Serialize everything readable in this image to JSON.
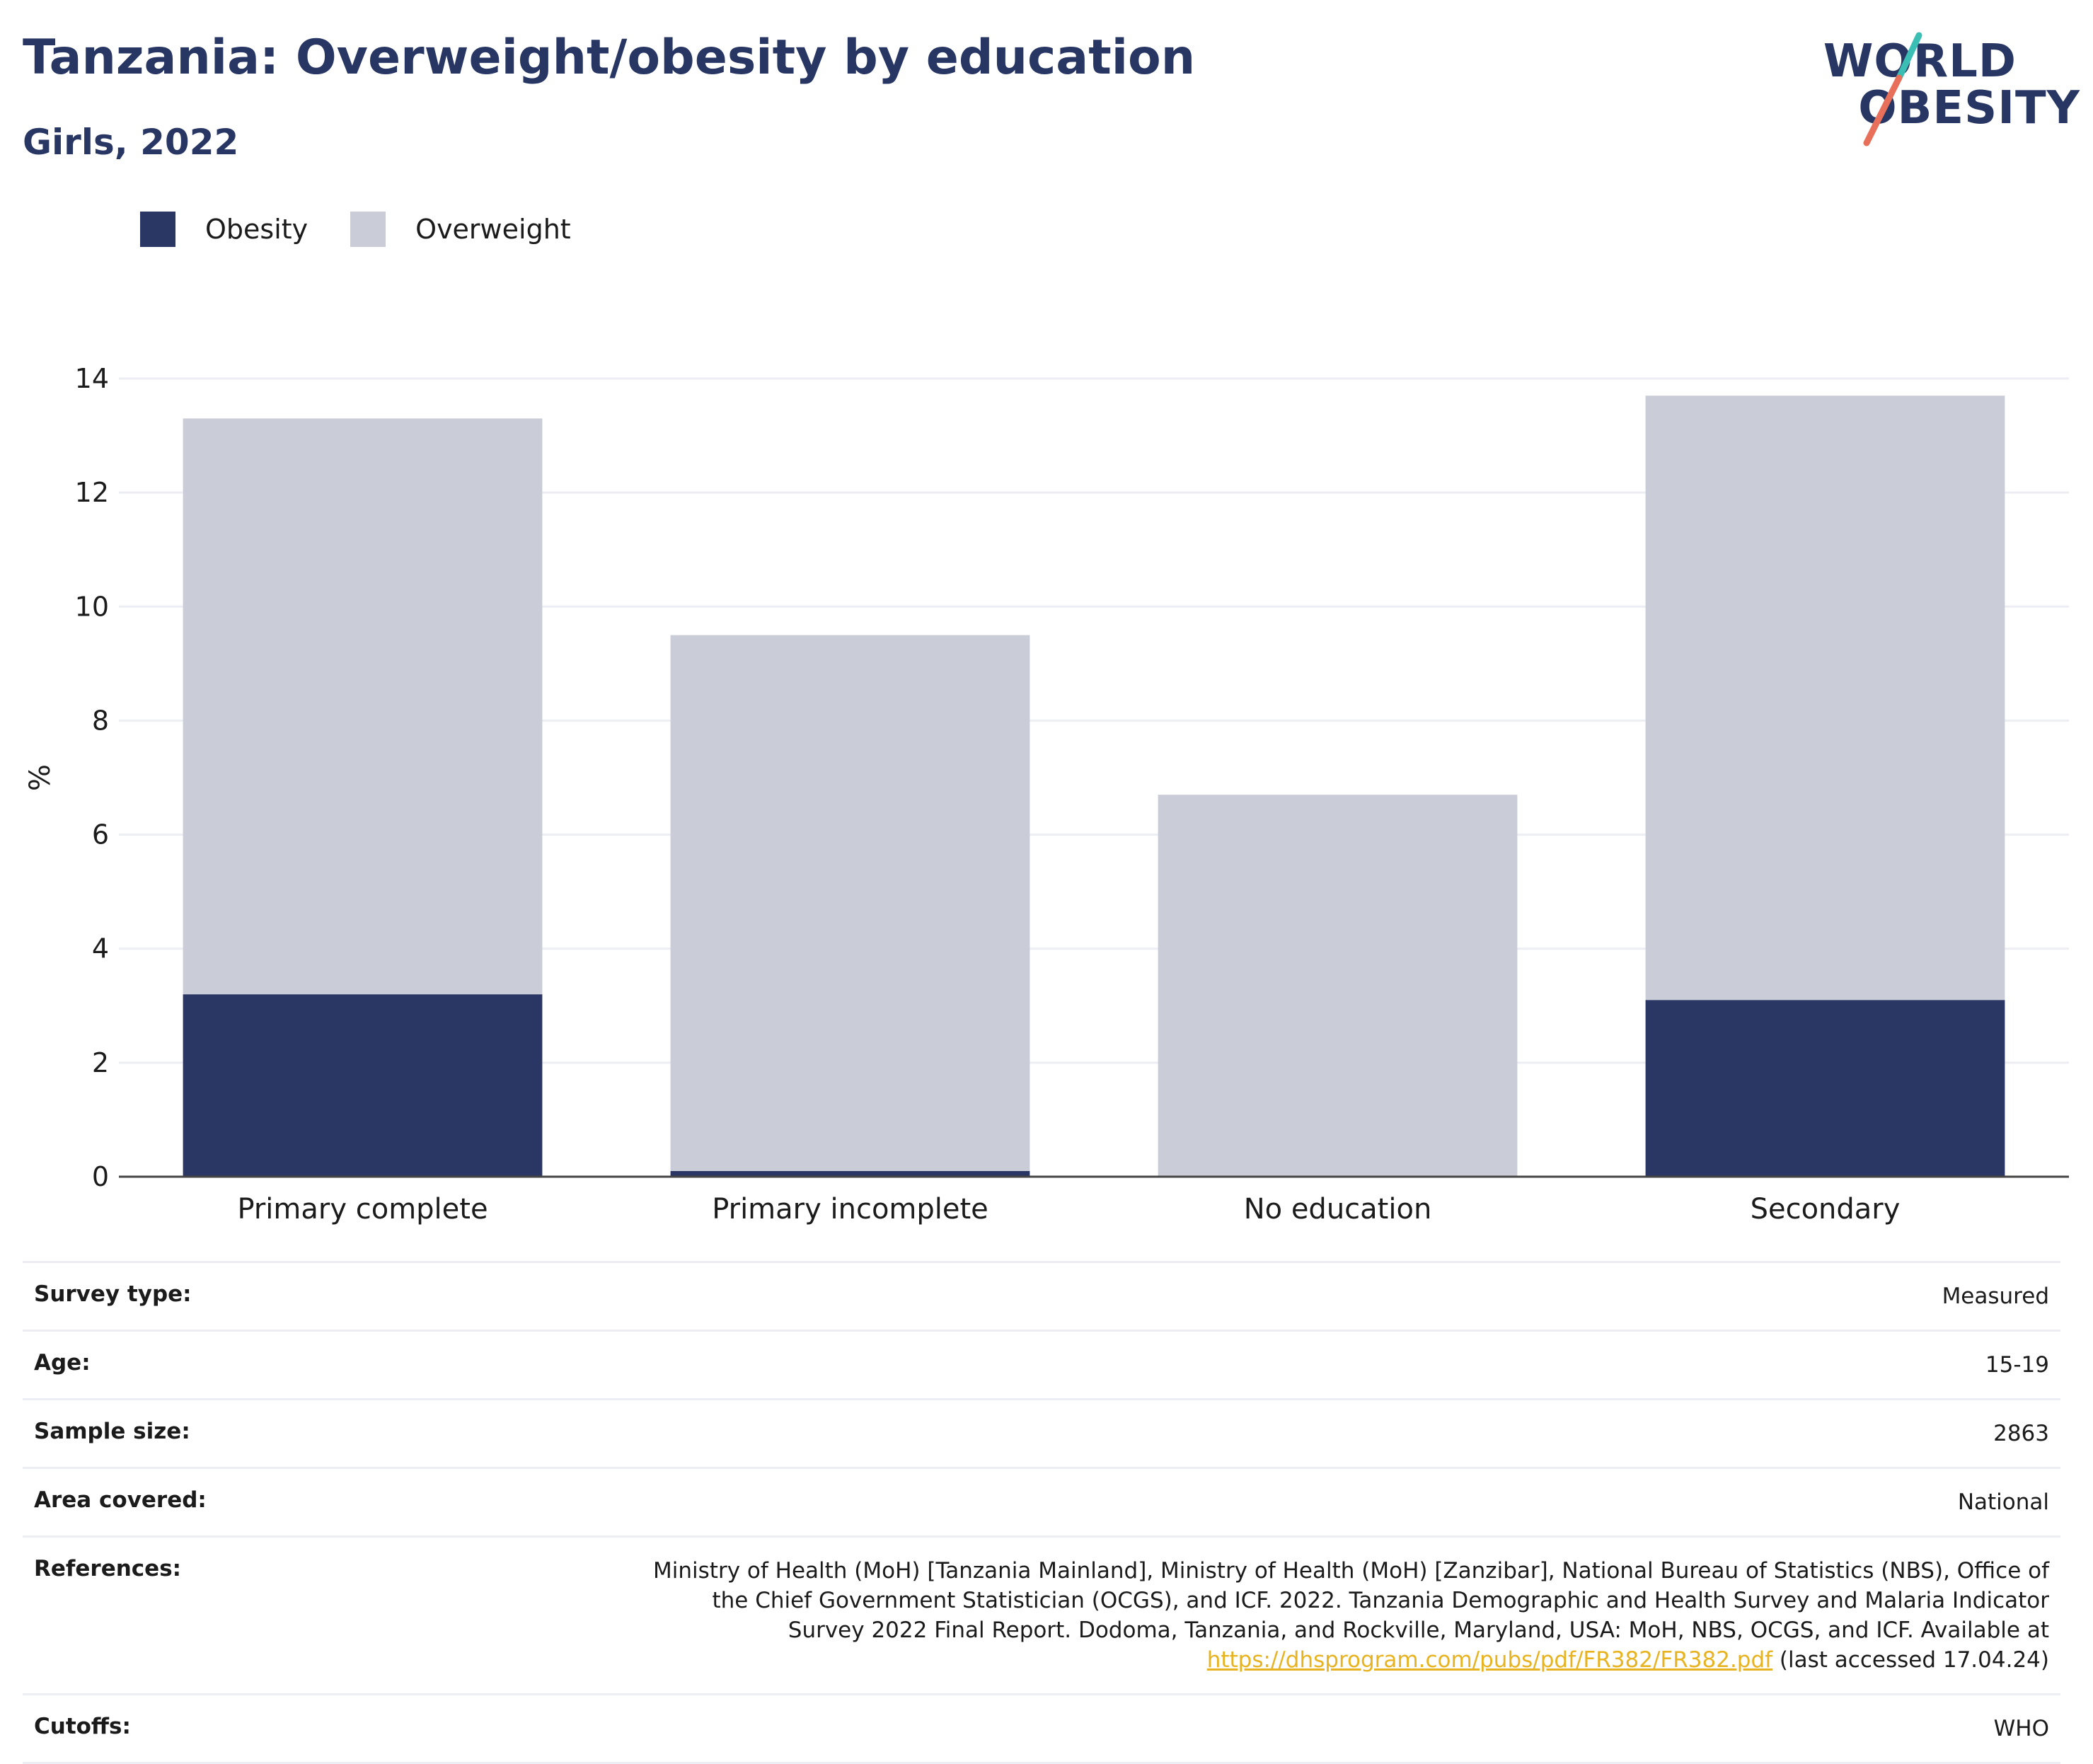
{
  "header": {
    "title": "Tanzania: Overweight/obesity by education",
    "subtitle": "Girls, 2022"
  },
  "logo": {
    "line1": "WORLD",
    "line2": "OBESITY"
  },
  "colors": {
    "obesity": "#2a3664",
    "overweight": "#cacdd8",
    "title": "#283664",
    "grid": "#eceef4",
    "link": "#e8b320"
  },
  "chart_data": {
    "type": "bar",
    "stacked": true,
    "categories": [
      "Primary complete",
      "Primary incomplete",
      "No education",
      "Secondary"
    ],
    "series": [
      {
        "name": "Obesity",
        "values": [
          3.2,
          0.1,
          0.0,
          3.1
        ]
      },
      {
        "name": "Overweight",
        "values": [
          10.1,
          9.4,
          6.7,
          10.6
        ]
      }
    ],
    "ylabel": "%",
    "ylim": [
      0,
      14
    ],
    "yticks": [
      0,
      2,
      4,
      6,
      8,
      10,
      12,
      14
    ],
    "grid": true,
    "legend": "top-left"
  },
  "info": {
    "survey_type": {
      "label": "Survey type:",
      "value": "Measured"
    },
    "age": {
      "label": "Age:",
      "value": "15-19"
    },
    "sample_size": {
      "label": "Sample size:",
      "value": "2863"
    },
    "area": {
      "label": "Area covered:",
      "value": "National"
    },
    "references": {
      "label": "References:",
      "text": "Ministry of Health (MoH) [Tanzania Mainland], Ministry of Health (MoH) [Zanzibar], National Bureau of Statistics (NBS), Office of the Chief Government Statistician (OCGS), and ICF. 2022. Tanzania Demographic and Health Survey and Malaria Indicator Survey 2022 Final Report. Dodoma, Tanzania, and Rockville, Maryland, USA: MoH, NBS, OCGS, and ICF. Available at",
      "link": "https://dhsprogram.com/pubs/pdf/FR382/FR382.pdf",
      "suffix": " (last accessed 17.04.24)"
    },
    "cutoffs": {
      "label": "Cutoffs:",
      "value": "WHO"
    }
  }
}
